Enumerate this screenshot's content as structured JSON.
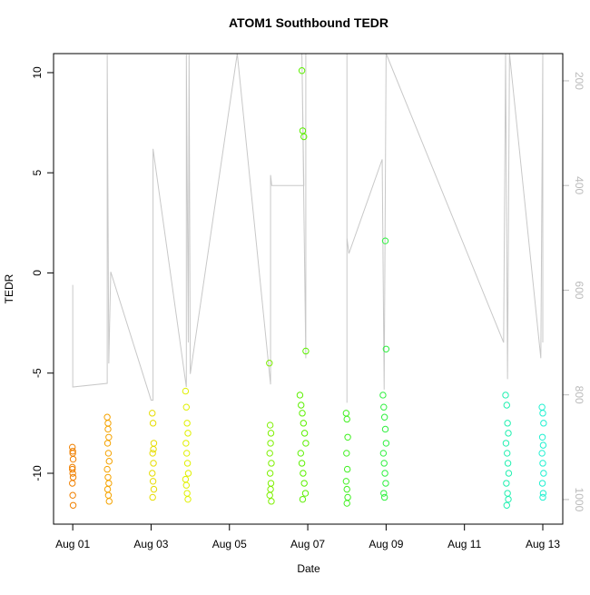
{
  "chart_data": {
    "type": "scatter",
    "title": "ATOM1 Southbound TEDR",
    "x_label": "Date",
    "y_label": "TEDR",
    "xlim": [
      0.51,
      13.51
    ],
    "xticks": [
      {
        "value": 1,
        "label": "Aug 01"
      },
      {
        "value": 3,
        "label": "Aug 03"
      },
      {
        "value": 5,
        "label": "Aug 05"
      },
      {
        "value": 7,
        "label": "Aug 07"
      },
      {
        "value": 9,
        "label": "Aug 09"
      },
      {
        "value": 11,
        "label": "Aug 11"
      },
      {
        "value": 13,
        "label": "Aug 13"
      }
    ],
    "ylim": [
      -12.54,
      10.95
    ],
    "yticks": [
      -10,
      -5,
      0,
      5,
      10
    ],
    "y2lim": [
      1047,
      148
    ],
    "y2ticks": [
      200,
      400,
      600,
      800,
      1000
    ],
    "y2_color": "#bbbbbb",
    "series": [
      {
        "color": "#c8c8c8",
        "axis": "y2",
        "kind": "line",
        "x": [
          1.0,
          1.0,
          1.88,
          1.88,
          1.92,
          1.97,
          3.0,
          3.05,
          3.05,
          3.9,
          3.9,
          3.95,
          3.97,
          4.0,
          5.2,
          6.05,
          6.05,
          6.08,
          6.9,
          6.85,
          6.95,
          6.95,
          8.0,
          8.0,
          8.0,
          8.05,
          8.9,
          8.95,
          9.0,
          12.0,
          12.05,
          12.1,
          12.15,
          12.95,
          13.0,
          13.0
        ],
        "values": [
          590,
          785,
          778,
          150,
          740,
          565,
          810,
          810,
          330,
          785,
          150,
          700,
          150,
          760,
          148,
          780,
          380,
          400,
          400,
          148,
          730,
          148,
          148,
          815,
          500,
          530,
          350,
          790,
          148,
          700,
          148,
          770,
          148,
          730,
          148,
          700
        ]
      },
      {
        "color": "#f08000",
        "x": [
          0.99,
          1.0,
          1.01,
          0.99,
          1.0,
          1.01,
          0.99,
          1.0,
          1.01,
          1.0,
          0.99
        ],
        "values": [
          -8.7,
          -9,
          -9.3,
          -9.7,
          -10,
          -10.2,
          -10.5,
          -11.1,
          -11.6,
          -8.9,
          -9.8
        ]
      },
      {
        "color": "#f5a300",
        "x": [
          1.88,
          1.9,
          1.92,
          1.89,
          1.91,
          1.93,
          1.88,
          1.9,
          1.92,
          1.89,
          1.91,
          1.93,
          1.9
        ],
        "values": [
          -7.2,
          -7.5,
          -8.2,
          -8.5,
          -9,
          -9.4,
          -9.8,
          -10.2,
          -10.5,
          -10.8,
          -11.1,
          -11.4,
          -7.8
        ]
      },
      {
        "color": "#e6dc00",
        "x": [
          3.03,
          3.05,
          3.07,
          3.04,
          3.06,
          3.03,
          3.05,
          3.07,
          3.04,
          3.06
        ],
        "values": [
          -7,
          -7.5,
          -8.5,
          -9,
          -9.5,
          -10,
          -10.4,
          -10.8,
          -11.2,
          -8.8
        ]
      },
      {
        "color": "#e0f000",
        "x": [
          3.88,
          3.9,
          3.92,
          3.94,
          3.89,
          3.91,
          3.93,
          3.95,
          3.88,
          3.9,
          3.92,
          3.94
        ],
        "values": [
          -5.9,
          -6.7,
          -7.5,
          -8,
          -8.5,
          -9,
          -9.5,
          -10,
          -10.3,
          -10.6,
          -11,
          -11.3
        ]
      },
      {
        "color": "#7ef000",
        "x": [
          6.02,
          6.04,
          6.06,
          6.05,
          6.03,
          6.07,
          6.04,
          6.06,
          6.05,
          6.03,
          6.07
        ],
        "values": [
          -4.5,
          -7.6,
          -8,
          -8.5,
          -9,
          -9.5,
          -10,
          -10.5,
          -10.8,
          -11.1,
          -11.4
        ]
      },
      {
        "color": "#5cf000",
        "x": [
          6.85,
          6.87,
          6.9,
          6.95,
          6.8,
          6.83,
          6.86,
          6.89,
          6.92,
          6.95,
          6.82,
          6.85,
          6.88,
          6.91,
          6.94,
          6.87
        ],
        "values": [
          10.1,
          7.1,
          6.8,
          -3.9,
          -6.1,
          -6.6,
          -7,
          -7.5,
          -8,
          -8.5,
          -9,
          -9.5,
          -10,
          -10.5,
          -11,
          -11.3
        ]
      },
      {
        "color": "#40f020",
        "x": [
          7.98,
          8.0,
          8.02,
          7.99,
          8.01,
          7.98,
          8.0,
          8.02,
          8.0
        ],
        "values": [
          -7,
          -7.3,
          -8.2,
          -9,
          -9.8,
          -10.4,
          -10.8,
          -11.2,
          -11.5
        ]
      },
      {
        "color": "#30f040",
        "x": [
          8.98,
          9.0,
          8.92,
          8.94,
          8.96,
          8.98,
          9.0,
          8.93,
          8.95,
          8.97,
          8.99,
          8.94,
          8.96
        ],
        "values": [
          1.6,
          -3.8,
          -6.1,
          -6.7,
          -7.2,
          -7.8,
          -8.5,
          -9,
          -9.5,
          -10,
          -10.5,
          -11,
          -11.2
        ]
      },
      {
        "color": "#20f0b0",
        "x": [
          12.05,
          12.08,
          12.1,
          12.12,
          12.06,
          12.09,
          12.11,
          12.13,
          12.07,
          12.1,
          12.12,
          12.08
        ],
        "values": [
          -6.1,
          -6.6,
          -7.5,
          -8,
          -8.5,
          -9,
          -9.5,
          -10,
          -10.5,
          -11,
          -11.3,
          -11.6
        ]
      },
      {
        "color": "#20f0d0",
        "x": [
          12.98,
          13.0,
          13.02,
          12.99,
          13.01,
          12.98,
          13.0,
          13.02,
          12.99,
          13.01,
          13.0
        ],
        "values": [
          -6.7,
          -7,
          -7.5,
          -8.2,
          -8.6,
          -9,
          -9.5,
          -10,
          -10.5,
          -11,
          -11.2
        ]
      }
    ]
  }
}
